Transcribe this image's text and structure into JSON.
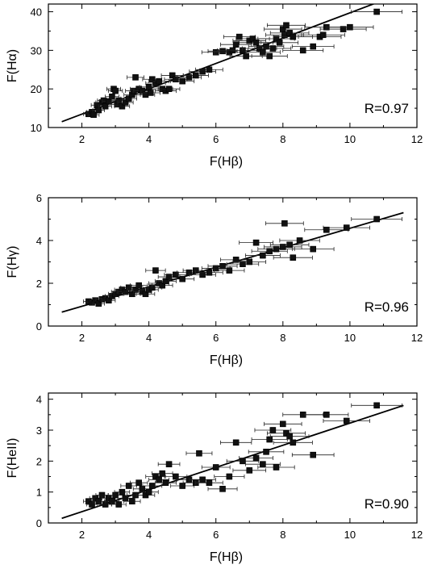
{
  "chart_data": [
    {
      "type": "scatter",
      "title": "",
      "xlabel": "F(Hβ)",
      "ylabel": "F(Hα)",
      "xlim": [
        1,
        12
      ],
      "ylim": [
        10,
        42
      ],
      "xticks": [
        2,
        4,
        6,
        8,
        10,
        12
      ],
      "yticks": [
        10,
        20,
        30,
        40
      ],
      "annotation": "R=0.97",
      "fit_line": {
        "x": [
          1.4,
          11.0
        ],
        "y": [
          11.5,
          43.0
        ]
      },
      "series": [
        {
          "x": [
            2.2,
            2.3,
            2.35,
            2.45,
            2.5,
            2.6,
            2.65,
            2.7,
            2.8,
            2.9,
            2.95,
            3.0,
            3.05,
            3.1,
            3.2,
            3.3,
            3.4,
            3.5,
            3.55,
            3.6,
            3.7,
            3.8,
            3.9,
            4.0,
            4.05,
            4.1,
            4.2,
            4.3,
            4.4,
            4.5,
            4.6,
            4.7,
            4.8,
            5.0,
            5.2,
            5.4,
            5.6,
            5.8,
            6.0,
            6.2,
            6.4,
            6.5,
            6.6,
            6.7,
            6.8,
            6.9,
            7.0,
            7.1,
            7.2,
            7.3,
            7.4,
            7.5,
            7.6,
            7.7,
            7.8,
            7.9,
            8.0,
            8.05,
            8.1,
            8.2,
            8.3,
            8.6,
            8.9,
            9.1,
            9.2,
            9.3,
            9.8,
            10.0,
            10.8
          ],
          "y": [
            13.5,
            14.0,
            13.3,
            15.8,
            14.5,
            16.5,
            17.0,
            15.5,
            16.8,
            18.0,
            20.0,
            19.5,
            16.0,
            17.0,
            15.5,
            16.5,
            17.5,
            18.5,
            19.5,
            23.0,
            20.0,
            19.5,
            18.5,
            20.5,
            19.0,
            22.5,
            21.5,
            22.0,
            20.0,
            19.5,
            20.0,
            23.5,
            22.5,
            22.0,
            23.0,
            23.5,
            24.5,
            25.0,
            29.5,
            29.8,
            29.5,
            30.0,
            31.5,
            33.5,
            30.0,
            28.5,
            32.5,
            33.0,
            32.0,
            30.5,
            29.5,
            31.0,
            28.5,
            30.5,
            33.0,
            32.0,
            35.5,
            34.0,
            36.5,
            34.5,
            33.5,
            30.0,
            31.0,
            33.5,
            34.0,
            36.0,
            35.5,
            36.0,
            40.0
          ]
        }
      ]
    },
    {
      "type": "scatter",
      "title": "",
      "xlabel": "F(Hβ)",
      "ylabel": "F(Hγ)",
      "xlim": [
        1,
        12
      ],
      "ylim": [
        0,
        6
      ],
      "xticks": [
        2,
        4,
        6,
        8,
        10,
        12
      ],
      "yticks": [
        0,
        2,
        4,
        6
      ],
      "annotation": "R=0.96",
      "fit_line": {
        "x": [
          1.4,
          11.6
        ],
        "y": [
          0.65,
          5.3
        ]
      },
      "series": [
        {
          "x": [
            2.2,
            2.3,
            2.4,
            2.5,
            2.6,
            2.7,
            2.8,
            2.9,
            3.0,
            3.1,
            3.2,
            3.3,
            3.4,
            3.5,
            3.6,
            3.7,
            3.8,
            3.9,
            4.0,
            4.1,
            4.2,
            4.3,
            4.4,
            4.5,
            4.6,
            4.8,
            5.0,
            5.2,
            5.4,
            5.6,
            5.8,
            6.0,
            6.2,
            6.4,
            6.6,
            6.8,
            7.0,
            7.2,
            7.4,
            7.6,
            7.8,
            8.0,
            8.05,
            8.2,
            8.3,
            8.5,
            8.9,
            9.3,
            9.9,
            10.8
          ],
          "y": [
            1.15,
            1.1,
            1.2,
            1.05,
            1.25,
            1.3,
            1.2,
            1.4,
            1.5,
            1.6,
            1.7,
            1.6,
            1.8,
            1.5,
            1.7,
            1.9,
            1.6,
            1.5,
            1.7,
            1.8,
            2.6,
            2.0,
            1.9,
            2.1,
            2.3,
            2.4,
            2.2,
            2.5,
            2.6,
            2.4,
            2.5,
            2.7,
            2.8,
            2.6,
            3.1,
            2.9,
            3.0,
            3.9,
            3.3,
            3.5,
            3.6,
            3.7,
            4.8,
            3.8,
            3.2,
            4.0,
            3.6,
            4.5,
            4.6,
            5.0
          ]
        }
      ]
    },
    {
      "type": "scatter",
      "title": "",
      "xlabel": "F(Hβ)",
      "ylabel": "F(HeII)",
      "xlim": [
        1,
        12
      ],
      "ylim": [
        0,
        4.2
      ],
      "xticks": [
        2,
        4,
        6,
        8,
        10,
        12
      ],
      "yticks": [
        0,
        1,
        2,
        3,
        4
      ],
      "annotation": "R=0.90",
      "fit_line": {
        "x": [
          1.4,
          11.6
        ],
        "y": [
          0.15,
          3.8
        ]
      },
      "series": [
        {
          "x": [
            2.2,
            2.3,
            2.4,
            2.5,
            2.6,
            2.7,
            2.8,
            2.9,
            3.0,
            3.1,
            3.2,
            3.3,
            3.4,
            3.5,
            3.6,
            3.7,
            3.8,
            3.9,
            4.0,
            4.1,
            4.2,
            4.3,
            4.4,
            4.5,
            4.6,
            4.8,
            5.0,
            5.2,
            5.4,
            5.5,
            5.6,
            5.8,
            6.0,
            6.2,
            6.4,
            6.6,
            6.8,
            7.0,
            7.2,
            7.4,
            7.5,
            7.6,
            7.7,
            7.8,
            8.0,
            8.1,
            8.2,
            8.3,
            8.6,
            8.9,
            9.3,
            9.9,
            10.8
          ],
          "y": [
            0.7,
            0.6,
            0.8,
            0.7,
            0.9,
            0.6,
            0.8,
            0.7,
            0.9,
            0.6,
            1.0,
            0.8,
            1.2,
            0.7,
            0.9,
            1.3,
            1.1,
            0.9,
            1.0,
            1.2,
            1.5,
            1.4,
            1.6,
            1.3,
            1.9,
            1.5,
            1.2,
            1.4,
            1.3,
            2.25,
            1.4,
            1.3,
            1.8,
            1.1,
            1.5,
            2.6,
            2.0,
            1.7,
            2.1,
            1.9,
            2.3,
            2.7,
            3.0,
            1.8,
            3.2,
            2.9,
            2.8,
            2.6,
            3.5,
            2.2,
            3.5,
            3.3,
            3.8
          ]
        }
      ]
    }
  ]
}
